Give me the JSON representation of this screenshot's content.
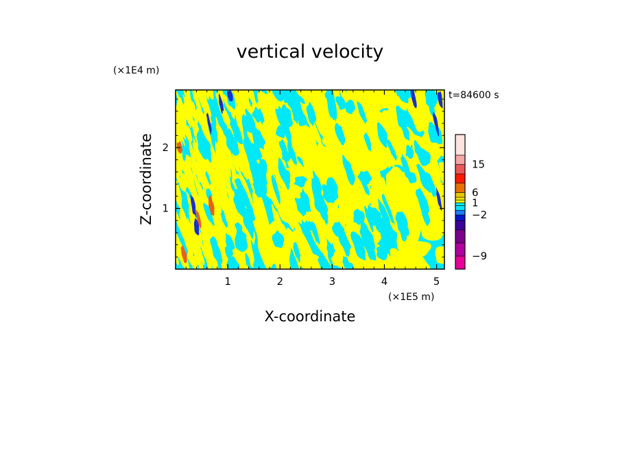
{
  "chart_data": {
    "type": "heatmap",
    "title": "vertical velocity",
    "xlabel": "X-coordinate",
    "ylabel": "Z-coordinate",
    "x_unit": "(×1E5 m)",
    "y_unit": "(×1E4 m)",
    "time_label": "t=84600 s",
    "xlim": [
      0,
      5.15
    ],
    "ylim": [
      0,
      2.95
    ],
    "x_ticks": [
      1,
      2,
      3,
      4,
      5
    ],
    "y_ticks": [
      1,
      2
    ],
    "colorbar": {
      "levels": [
        -12,
        -9,
        -6,
        -4,
        -3,
        -2,
        -1,
        0,
        1,
        2,
        3,
        6,
        9,
        12,
        15,
        18,
        24
      ],
      "colors": [
        "#e8009a",
        "#b0009e",
        "#7a008a",
        "#3a0098",
        "#0018c8",
        "#1e7cff",
        "#00e5ff",
        "#00f0ff",
        "#ffff00",
        "#f0e000",
        "#e8c800",
        "#e87000",
        "#ff1a00",
        "#e85a5a",
        "#f5a6a6",
        "#fce4e0"
      ],
      "tick_labels": [
        {
          "value": 15,
          "label": "15"
        },
        {
          "value": 6,
          "label": "6"
        },
        {
          "value": 1,
          "label": "1"
        },
        {
          "value": -2,
          "label": "−2"
        },
        {
          "value": -9,
          "label": "−9"
        }
      ]
    },
    "field_colors": {
      "negative": "#00e8f5",
      "positive": "#ffff00",
      "strong_negative": "#1a2fd0",
      "strong_positive": "#e8601a"
    }
  }
}
